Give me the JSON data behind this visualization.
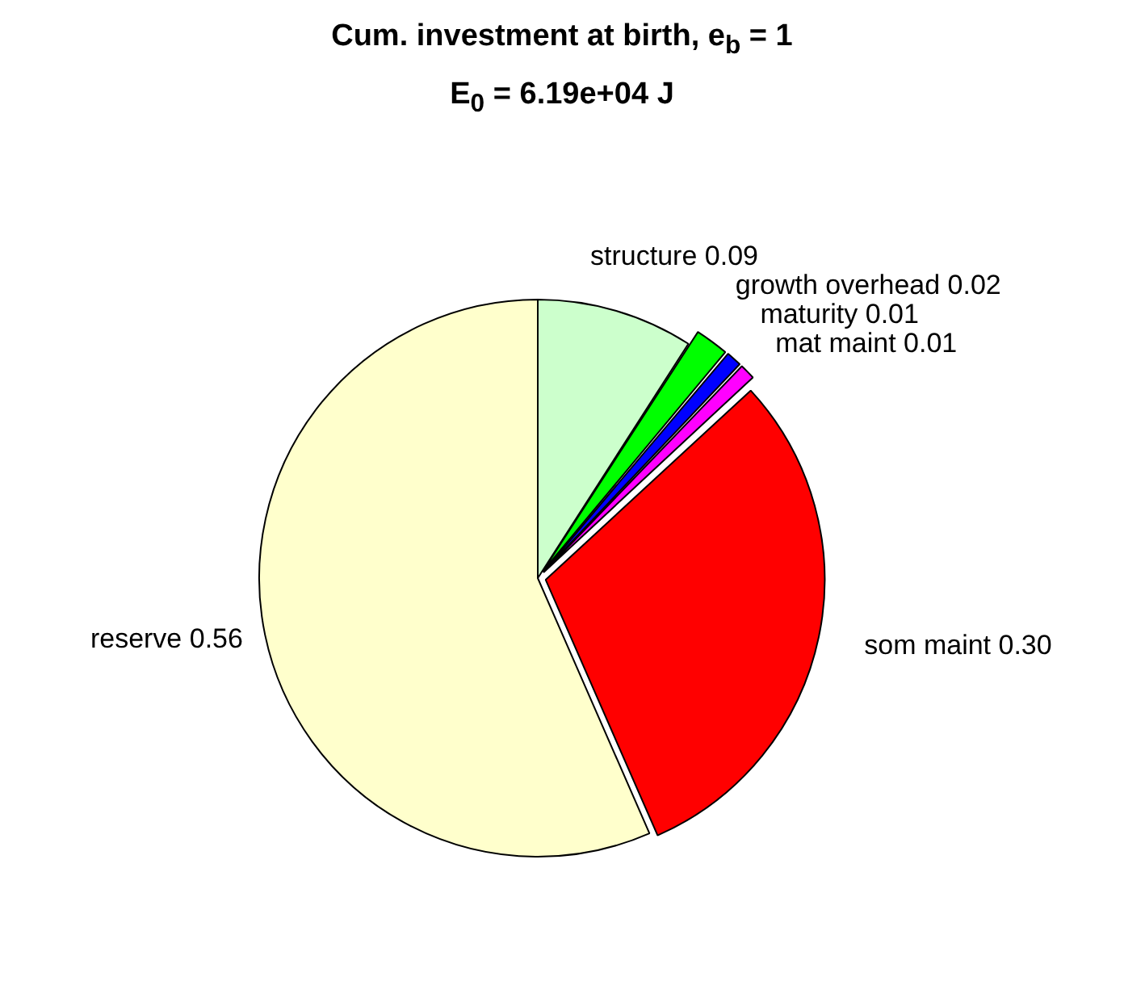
{
  "chart_data": {
    "type": "pie",
    "title": "Cum. investment at birth, e$_{b}$ = 1",
    "subtitle": "E$_{0}$ = 6.19e+04 J",
    "categories": [
      "structure",
      "growth overhead",
      "maturity",
      "mat maint",
      "som maint",
      "reserve"
    ],
    "values": [
      0.09,
      0.02,
      0.01,
      0.01,
      0.3,
      0.56
    ],
    "value_labels": [
      "0.09",
      "0.02",
      "0.01",
      "0.01",
      "0.30",
      "0.56"
    ],
    "colors": [
      "#ccffcc",
      "#00ff00",
      "#0000ff",
      "#ff00ff",
      "#ff0000",
      "#ffffcc"
    ],
    "legend": false
  }
}
